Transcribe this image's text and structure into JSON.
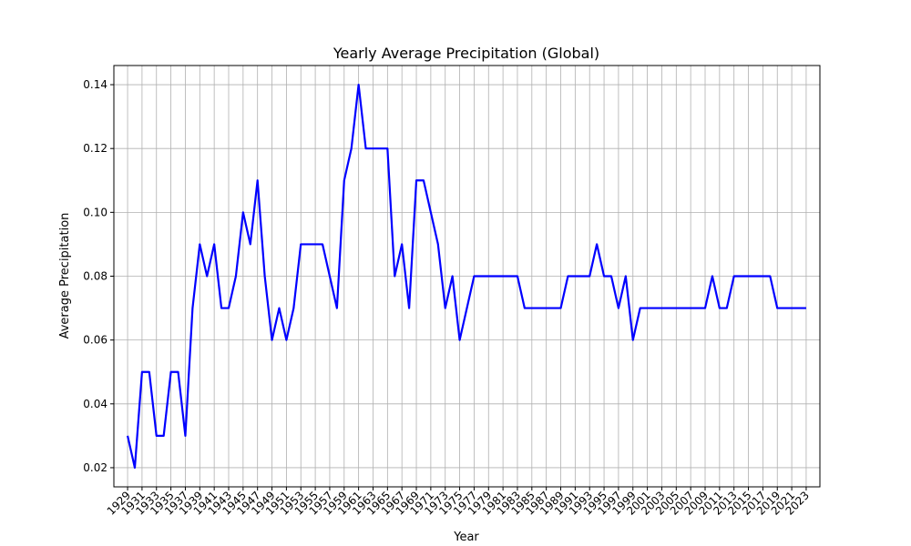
{
  "chart_data": {
    "type": "line",
    "title": "Yearly Average Precipitation (Global)",
    "xlabel": "Year",
    "ylabel": "Average Precipitation",
    "x": [
      1929,
      1930,
      1931,
      1932,
      1933,
      1934,
      1935,
      1936,
      1937,
      1938,
      1939,
      1940,
      1941,
      1942,
      1943,
      1944,
      1945,
      1946,
      1947,
      1948,
      1949,
      1950,
      1951,
      1952,
      1953,
      1954,
      1955,
      1956,
      1957,
      1958,
      1959,
      1960,
      1961,
      1962,
      1963,
      1964,
      1965,
      1966,
      1967,
      1968,
      1969,
      1970,
      1971,
      1972,
      1973,
      1974,
      1975,
      1976,
      1977,
      1978,
      1979,
      1980,
      1981,
      1982,
      1983,
      1984,
      1985,
      1986,
      1987,
      1988,
      1989,
      1990,
      1991,
      1992,
      1993,
      1994,
      1995,
      1996,
      1997,
      1998,
      1999,
      2000,
      2001,
      2002,
      2003,
      2004,
      2005,
      2006,
      2007,
      2008,
      2009,
      2010,
      2011,
      2012,
      2013,
      2014,
      2015,
      2016,
      2017,
      2018,
      2019,
      2020,
      2021,
      2022,
      2023
    ],
    "series": [
      {
        "name": "Average Precipitation",
        "color": "#0000ff",
        "values": [
          0.03,
          0.02,
          0.05,
          0.05,
          0.03,
          0.03,
          0.05,
          0.05,
          0.03,
          0.07,
          0.09,
          0.08,
          0.09,
          0.07,
          0.07,
          0.08,
          0.1,
          0.09,
          0.11,
          0.08,
          0.06,
          0.07,
          0.06,
          0.07,
          0.09,
          0.09,
          0.09,
          0.09,
          0.08,
          0.07,
          0.11,
          0.12,
          0.14,
          0.12,
          0.12,
          0.12,
          0.12,
          0.08,
          0.09,
          0.07,
          0.11,
          0.11,
          0.1,
          0.09,
          0.07,
          0.08,
          0.06,
          0.07,
          0.08,
          0.08,
          0.08,
          0.08,
          0.08,
          0.08,
          0.08,
          0.07,
          0.07,
          0.07,
          0.07,
          0.07,
          0.07,
          0.08,
          0.08,
          0.08,
          0.08,
          0.09,
          0.08,
          0.08,
          0.07,
          0.08,
          0.06,
          0.07,
          0.07,
          0.07,
          0.07,
          0.07,
          0.07,
          0.07,
          0.07,
          0.07,
          0.07,
          0.08,
          0.07,
          0.07,
          0.08,
          0.08,
          0.08,
          0.08,
          0.08,
          0.08,
          0.07,
          0.07,
          0.07,
          0.07,
          0.07
        ]
      }
    ],
    "xlim": [
      1927.1,
      2024.9
    ],
    "xticks": [
      1929,
      1931,
      1933,
      1935,
      1937,
      1939,
      1941,
      1943,
      1945,
      1947,
      1949,
      1951,
      1953,
      1955,
      1957,
      1959,
      1961,
      1963,
      1965,
      1967,
      1969,
      1971,
      1973,
      1975,
      1977,
      1979,
      1981,
      1983,
      1985,
      1987,
      1989,
      1991,
      1993,
      1995,
      1997,
      1999,
      2001,
      2003,
      2005,
      2007,
      2009,
      2011,
      2013,
      2015,
      2017,
      2019,
      2021,
      2023
    ],
    "ylim": [
      0.014,
      0.146
    ],
    "yticks": [
      0.02,
      0.04,
      0.06,
      0.08,
      {
        "value": 0.1,
        "label": "0.10"
      },
      0.12,
      0.14
    ],
    "grid": true
  }
}
